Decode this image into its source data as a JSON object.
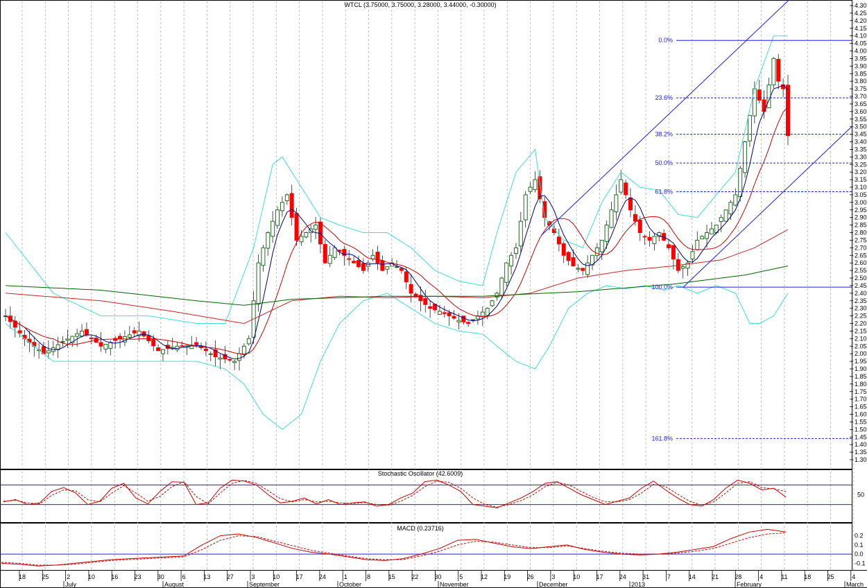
{
  "colors": {
    "bull": "#1e6b1e",
    "bear": "#ff0000",
    "ma_fast": "#000080",
    "ma_mid": "#cc0000",
    "ma_slow_red": "#cc2222",
    "ma_slow_green": "#006400",
    "bollinger": "#40e0d0",
    "fib": "#1a1aff",
    "stoch_k": "#cc0000",
    "stoch_d": "#cc0000",
    "macd": "#cc0000",
    "grid": "#b0b0b0",
    "frame": "#000000"
  },
  "chart_data": [
    {
      "type": "candlestick",
      "title": "WTCL (3.75000, 3.75000, 3.28000, 3.44000, -0.30000)",
      "ylim": [
        1.25,
        4.33
      ],
      "y_ticks": [
        "4.30",
        "4.25",
        "4.20",
        "4.15",
        "4.10",
        "4.05",
        "4.00",
        "3.95",
        "3.90",
        "3.85",
        "3.80",
        "3.75",
        "3.70",
        "3.65",
        "3.60",
        "3.55",
        "3.50",
        "3.45",
        "3.40",
        "3.35",
        "3.30",
        "3.25",
        "3.20",
        "3.15",
        "3.10",
        "3.05",
        "3.00",
        "2.95",
        "2.90",
        "2.85",
        "2.80",
        "2.75",
        "2.70",
        "2.65",
        "2.60",
        "2.55",
        "2.50",
        "2.45",
        "2.40",
        "2.35",
        "2.30",
        "2.25",
        "2.20",
        "2.15",
        "2.10",
        "2.05",
        "2.00",
        "1.95",
        "1.90",
        "1.85",
        "1.80",
        "1.75",
        "1.70",
        "1.65",
        "1.60",
        "1.55",
        "1.50",
        "1.45",
        "1.40",
        "1.35",
        "1.30"
      ],
      "x_ticks": [
        "18",
        "25",
        "2",
        "10",
        "16",
        "23",
        "30",
        "6",
        "13",
        "27",
        "3",
        "10",
        "17",
        "24",
        "1",
        "8",
        "15",
        "22",
        "30",
        "5",
        "12",
        "19",
        "26",
        "3",
        "10",
        "17",
        "24",
        "31",
        "7",
        "14",
        "21",
        "28",
        "4",
        "11",
        "18",
        "25",
        "4"
      ],
      "months": [
        "July",
        "August",
        "September",
        "October",
        "November",
        "December",
        "2013",
        "February",
        "March"
      ],
      "fib_levels": [
        {
          "label": "0.0%",
          "value": 4.07
        },
        {
          "label": "23.6%",
          "value": 3.69
        },
        {
          "label": "38.2%",
          "value": 3.45
        },
        {
          "label": "50.0%",
          "value": 3.26
        },
        {
          "label": "61.8%",
          "value": 3.07
        },
        {
          "label": "100.0%",
          "value": 2.44
        },
        {
          "label": "161.8%",
          "value": 1.44
        }
      ],
      "waypoints_close": [
        [
          0,
          2.25
        ],
        [
          4,
          2.1
        ],
        [
          8,
          2.0
        ],
        [
          12,
          2.08
        ],
        [
          16,
          2.15
        ],
        [
          20,
          2.05
        ],
        [
          24,
          2.1
        ],
        [
          28,
          2.15
        ],
        [
          32,
          2.02
        ],
        [
          36,
          2.05
        ],
        [
          40,
          2.06
        ],
        [
          44,
          1.98
        ],
        [
          48,
          1.95
        ],
        [
          51,
          2.1
        ],
        [
          53,
          2.6
        ],
        [
          55,
          2.8
        ],
        [
          57,
          2.95
        ],
        [
          59,
          3.05
        ],
        [
          61,
          2.75
        ],
        [
          63,
          2.8
        ],
        [
          65,
          2.85
        ],
        [
          67,
          2.6
        ],
        [
          69,
          2.7
        ],
        [
          71,
          2.65
        ],
        [
          73,
          2.6
        ],
        [
          75,
          2.55
        ],
        [
          77,
          2.65
        ],
        [
          79,
          2.55
        ],
        [
          81,
          2.6
        ],
        [
          83,
          2.55
        ],
        [
          85,
          2.4
        ],
        [
          87,
          2.35
        ],
        [
          89,
          2.3
        ],
        [
          91,
          2.28
        ],
        [
          93,
          2.25
        ],
        [
          95,
          2.22
        ],
        [
          97,
          2.2
        ],
        [
          99,
          2.25
        ],
        [
          101,
          2.3
        ],
        [
          103,
          2.4
        ],
        [
          105,
          2.6
        ],
        [
          107,
          2.7
        ],
        [
          109,
          3.05
        ],
        [
          111,
          3.15
        ],
        [
          113,
          2.9
        ],
        [
          115,
          2.8
        ],
        [
          117,
          2.65
        ],
        [
          119,
          2.58
        ],
        [
          121,
          2.55
        ],
        [
          123,
          2.65
        ],
        [
          125,
          2.75
        ],
        [
          127,
          2.95
        ],
        [
          129,
          3.15
        ],
        [
          131,
          2.95
        ],
        [
          133,
          2.8
        ],
        [
          135,
          2.75
        ],
        [
          137,
          2.8
        ],
        [
          139,
          2.7
        ],
        [
          141,
          2.55
        ],
        [
          143,
          2.6
        ],
        [
          145,
          2.75
        ],
        [
          147,
          2.8
        ],
        [
          149,
          2.85
        ],
        [
          151,
          2.95
        ],
        [
          153,
          3.05
        ],
        [
          155,
          3.4
        ],
        [
          157,
          3.75
        ],
        [
          159,
          3.6
        ],
        [
          161,
          3.95
        ],
        [
          162,
          3.8
        ],
        [
          163,
          3.75
        ],
        [
          164,
          3.44
        ]
      ],
      "bollinger_upper": [
        [
          0,
          2.8
        ],
        [
          10,
          2.4
        ],
        [
          20,
          2.25
        ],
        [
          30,
          2.25
        ],
        [
          40,
          2.2
        ],
        [
          46,
          2.2
        ],
        [
          52,
          2.7
        ],
        [
          56,
          3.25
        ],
        [
          58,
          3.3
        ],
        [
          62,
          3.1
        ],
        [
          66,
          2.9
        ],
        [
          70,
          2.85
        ],
        [
          75,
          2.8
        ],
        [
          80,
          2.8
        ],
        [
          85,
          2.7
        ],
        [
          90,
          2.55
        ],
        [
          95,
          2.48
        ],
        [
          100,
          2.45
        ],
        [
          103,
          2.8
        ],
        [
          107,
          3.2
        ],
        [
          111,
          3.35
        ],
        [
          113,
          2.9
        ],
        [
          117,
          2.75
        ],
        [
          121,
          2.7
        ],
        [
          125,
          3.0
        ],
        [
          129,
          3.2
        ],
        [
          133,
          3.1
        ],
        [
          137,
          3.08
        ],
        [
          141,
          2.92
        ],
        [
          145,
          2.9
        ],
        [
          149,
          3.05
        ],
        [
          153,
          3.2
        ],
        [
          157,
          3.75
        ],
        [
          161,
          4.1
        ],
        [
          164,
          4.1
        ]
      ],
      "bollinger_lower": [
        [
          0,
          2.2
        ],
        [
          10,
          1.95
        ],
        [
          20,
          1.95
        ],
        [
          30,
          1.95
        ],
        [
          40,
          1.95
        ],
        [
          46,
          1.9
        ],
        [
          50,
          1.8
        ],
        [
          54,
          1.6
        ],
        [
          58,
          1.5
        ],
        [
          62,
          1.6
        ],
        [
          66,
          1.95
        ],
        [
          70,
          2.2
        ],
        [
          75,
          2.35
        ],
        [
          80,
          2.4
        ],
        [
          85,
          2.3
        ],
        [
          90,
          2.2
        ],
        [
          95,
          2.15
        ],
        [
          100,
          2.13
        ],
        [
          103,
          2.05
        ],
        [
          107,
          1.95
        ],
        [
          111,
          1.9
        ],
        [
          114,
          2.05
        ],
        [
          118,
          2.3
        ],
        [
          122,
          2.4
        ],
        [
          126,
          2.45
        ],
        [
          130,
          2.43
        ],
        [
          134,
          2.45
        ],
        [
          138,
          2.42
        ],
        [
          141,
          2.45
        ],
        [
          145,
          2.4
        ],
        [
          149,
          2.45
        ],
        [
          153,
          2.4
        ],
        [
          156,
          2.2
        ],
        [
          158,
          2.2
        ],
        [
          161,
          2.25
        ],
        [
          164,
          2.4
        ]
      ],
      "ma_slow_red": [
        [
          0,
          2.4
        ],
        [
          20,
          2.35
        ],
        [
          35,
          2.28
        ],
        [
          50,
          2.2
        ],
        [
          60,
          2.35
        ],
        [
          70,
          2.38
        ],
        [
          80,
          2.37
        ],
        [
          90,
          2.38
        ],
        [
          100,
          2.37
        ],
        [
          110,
          2.4
        ],
        [
          120,
          2.5
        ],
        [
          130,
          2.55
        ],
        [
          140,
          2.58
        ],
        [
          150,
          2.62
        ],
        [
          157,
          2.7
        ],
        [
          164,
          2.82
        ]
      ],
      "ma_slow_green": [
        [
          0,
          2.45
        ],
        [
          20,
          2.42
        ],
        [
          40,
          2.35
        ],
        [
          50,
          2.32
        ],
        [
          60,
          2.36
        ],
        [
          80,
          2.38
        ],
        [
          100,
          2.38
        ],
        [
          120,
          2.41
        ],
        [
          140,
          2.46
        ],
        [
          155,
          2.52
        ],
        [
          164,
          2.58
        ]
      ]
    },
    {
      "type": "line",
      "title": "Stochastic Oscillator (42.6009)",
      "ylim": [
        0,
        100
      ],
      "y_ticks": [
        "50"
      ],
      "bands": [
        80,
        20
      ],
      "series": [
        {
          "values": [
            28,
            35,
            20,
            25,
            60,
            72,
            55,
            20,
            30,
            70,
            85,
            40,
            22,
            60,
            90,
            88,
            20,
            25,
            70,
            95,
            92,
            80,
            50,
            25,
            30,
            40,
            22,
            35,
            20,
            25,
            28,
            15,
            20,
            40,
            55,
            90,
            95,
            80,
            60,
            20,
            15,
            10,
            25,
            40,
            60,
            85,
            90,
            70,
            50,
            35,
            20,
            30,
            40,
            70,
            92,
            65,
            40,
            20,
            15,
            35,
            70,
            95,
            85,
            65,
            70,
            43
          ]
        },
        {
          "values": [
            30,
            33,
            25,
            22,
            48,
            65,
            62,
            35,
            28,
            55,
            78,
            55,
            30,
            45,
            75,
            90,
            45,
            22,
            55,
            85,
            94,
            85,
            62,
            38,
            28,
            35,
            28,
            30,
            25,
            23,
            26,
            20,
            18,
            30,
            48,
            75,
            92,
            88,
            70,
            40,
            20,
            12,
            20,
            32,
            50,
            75,
            88,
            80,
            60,
            42,
            28,
            28,
            35,
            55,
            82,
            75,
            52,
            30,
            18,
            28,
            55,
            85,
            90,
            72,
            68,
            60
          ]
        }
      ]
    },
    {
      "type": "line",
      "title": "MACD (0.23716)",
      "ylim": [
        -0.13,
        0.28
      ],
      "y_ticks": [
        "0.2",
        "0.1",
        "0.0",
        "-0.1"
      ],
      "series": [
        {
          "values": [
            -0.1,
            -0.11,
            -0.13,
            -0.12,
            -0.1,
            -0.08,
            -0.06,
            -0.05,
            -0.04,
            -0.03,
            -0.02,
            0.1,
            0.2,
            0.22,
            0.18,
            0.12,
            0.06,
            0.02,
            0.0,
            -0.03,
            -0.06,
            -0.07,
            -0.05,
            0.0,
            0.06,
            0.15,
            0.16,
            0.12,
            0.08,
            0.06,
            0.08,
            0.1,
            0.05,
            0.02,
            0.0,
            -0.01,
            0.0,
            0.02,
            0.05,
            0.08,
            0.17,
            0.24,
            0.27,
            0.24
          ]
        },
        {
          "values": [
            -0.09,
            -0.1,
            -0.12,
            -0.12,
            -0.11,
            -0.09,
            -0.07,
            -0.06,
            -0.05,
            -0.04,
            -0.03,
            0.05,
            0.15,
            0.2,
            0.19,
            0.14,
            0.09,
            0.04,
            0.01,
            -0.02,
            -0.05,
            -0.06,
            -0.06,
            -0.02,
            0.03,
            0.1,
            0.14,
            0.13,
            0.1,
            0.07,
            0.07,
            0.09,
            0.06,
            0.03,
            0.01,
            0.0,
            0.0,
            0.01,
            0.03,
            0.06,
            0.12,
            0.18,
            0.22,
            0.23
          ]
        }
      ]
    }
  ]
}
